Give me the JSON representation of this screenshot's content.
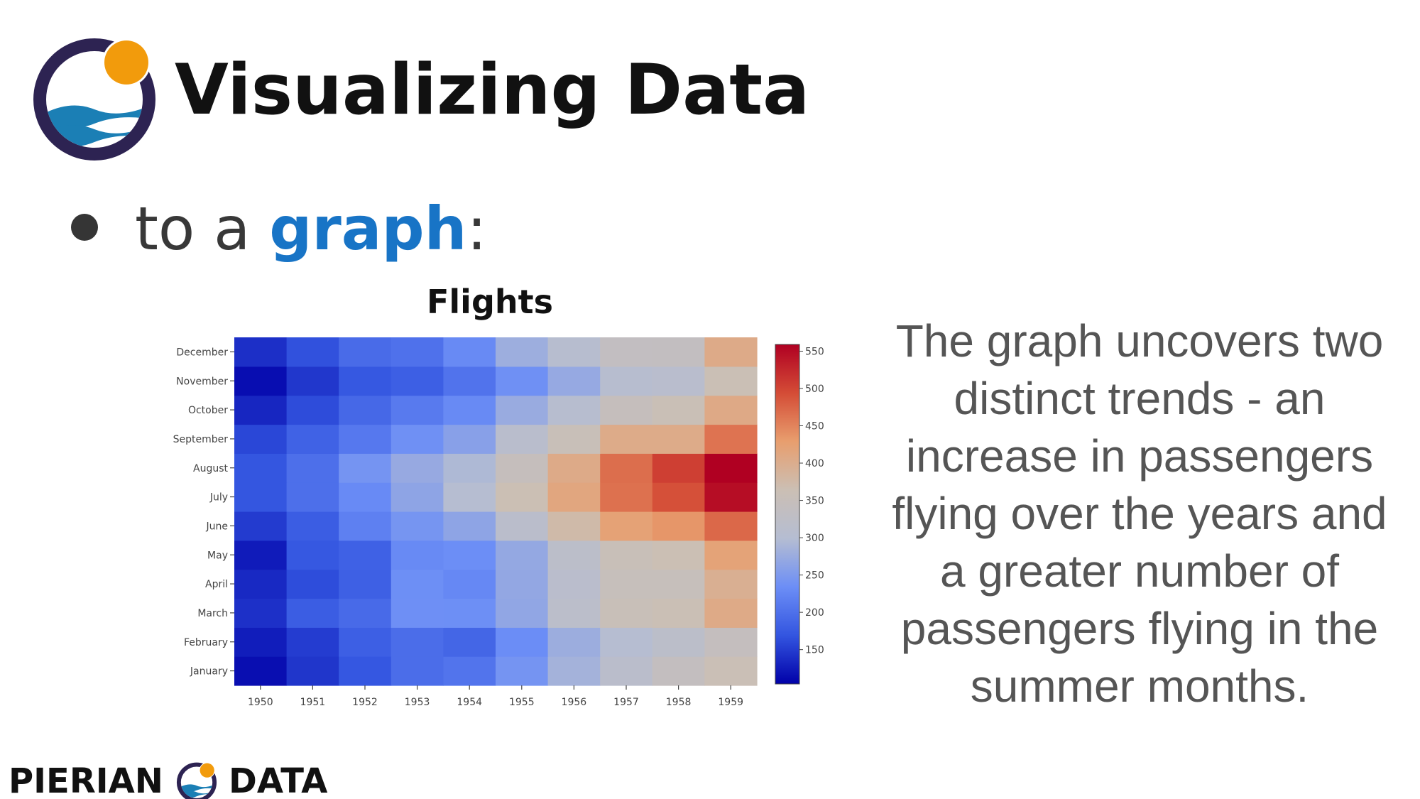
{
  "slide": {
    "title": "Visualizing Data",
    "bullet": {
      "prefix": "to a ",
      "highlight": "graph",
      "suffix": ":"
    },
    "description": "The graph uncovers two distinct trends - an increase in passengers flying over the years and a greater number of passengers flying in the summer months."
  },
  "footer": {
    "brand_left": "PIERIAN",
    "brand_right": "DATA"
  },
  "colors": {
    "title_text": "#111111",
    "bullet_text": "#383838",
    "highlight": "#1874c6",
    "description_text": "#555555",
    "logo_ring": "#2d2352",
    "logo_sun": "#f29b0c",
    "logo_water": "#1b7fb5"
  },
  "icons": {
    "header_logo": "pierian-data-logo-icon",
    "footer_logo": "pierian-data-logo-icon",
    "bullet": "bullet-dot"
  },
  "chart_data": {
    "type": "heatmap",
    "title": "Flights",
    "x": [
      "1950",
      "1951",
      "1952",
      "1953",
      "1954",
      "1955",
      "1956",
      "1957",
      "1958",
      "1959"
    ],
    "y": [
      "January",
      "February",
      "March",
      "April",
      "May",
      "June",
      "July",
      "August",
      "September",
      "October",
      "November",
      "December"
    ],
    "z": [
      [
        115,
        145,
        171,
        196,
        204,
        242,
        284,
        315,
        340,
        360
      ],
      [
        126,
        150,
        180,
        196,
        188,
        233,
        277,
        301,
        318,
        342
      ],
      [
        141,
        178,
        193,
        236,
        235,
        267,
        317,
        356,
        362,
        406
      ],
      [
        135,
        163,
        181,
        235,
        227,
        269,
        313,
        348,
        348,
        396
      ],
      [
        125,
        172,
        183,
        229,
        234,
        270,
        318,
        355,
        363,
        420
      ],
      [
        149,
        178,
        218,
        243,
        264,
        315,
        374,
        422,
        435,
        472
      ],
      [
        170,
        199,
        230,
        264,
        302,
        364,
        413,
        465,
        491,
        548
      ],
      [
        170,
        199,
        242,
        272,
        293,
        347,
        405,
        467,
        505,
        559
      ],
      [
        158,
        184,
        209,
        237,
        259,
        312,
        355,
        404,
        404,
        463
      ],
      [
        133,
        162,
        191,
        211,
        229,
        274,
        306,
        347,
        359,
        407
      ],
      [
        114,
        146,
        172,
        180,
        203,
        237,
        271,
        305,
        310,
        362
      ],
      [
        140,
        166,
        194,
        201,
        229,
        278,
        306,
        336,
        337,
        405
      ]
    ],
    "colorbar": {
      "ticks": [
        150,
        200,
        250,
        300,
        350,
        400,
        450,
        500,
        550
      ],
      "min": 104,
      "max": 559
    },
    "colorscale": [
      "#0000a8",
      "#3355e0",
      "#6c8ef6",
      "#b5bdd2",
      "#cbbfb4",
      "#e89e6e",
      "#d44c36",
      "#b00022"
    ]
  }
}
